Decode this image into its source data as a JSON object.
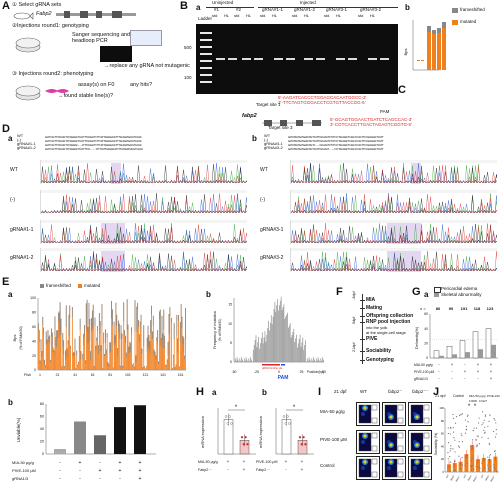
{
  "panel_letters": {
    "A": "A",
    "B": "B",
    "C": "C",
    "D": "D",
    "E": "E",
    "F": "F",
    "G": "G",
    "H": "H",
    "I": "I",
    "J": "J"
  },
  "sub_letters": {
    "a": "a",
    "b": "b"
  },
  "panelA": {
    "step1": "① Select gRNA sets",
    "gene": "Fabp2",
    "step2": "②Injections round1: genotyping",
    "seq_note": "Sanger sequencing and",
    "seq_note2": "headloop PCR",
    "replace_note": "→replace any gRNA not mutagenic",
    "step3": "③ Injections round2: phenotyping",
    "assay": "assay(s) on F0",
    "hits": "any hits?",
    "found": "→found stable line(s)?"
  },
  "panelBa": {
    "header_uninjected": "Uninjected",
    "header_injected": "Injected",
    "groups": [
      "#1",
      "#2",
      "gRNA#1-1",
      "gRNA#1-2",
      "gRNA#3-1",
      "gRNA#3-2"
    ],
    "lanes": [
      "std",
      "HL"
    ],
    "ladder": "Ladder",
    "marker_500": "500",
    "marker_100": "100"
  },
  "panelBb": {
    "ylabel": "Bps\n(% of PAM±50)",
    "legend_frameshift": "frameshifted",
    "legend_mutated": "mutated",
    "legend_colors": {
      "frameshift": "#888888",
      "mutated": "#f07f1e"
    }
  },
  "panelC": {
    "gene": "fabp2",
    "target1": "Target site 1",
    "target3": "Target site 3",
    "seq1": "5'-AAGATCACCCTGGAGCACAATGGCC-3'",
    "seq1b": "3'-TTCTAGTGGGACCTCGTGTTACCGG-5'",
    "seq3": "5'-GCAGTGGAACTGATCTCAGCCAC-3'",
    "seq3b": "3'-CGTCACCTTGACTAGAGTCGGTG-5'",
    "pam": "PAM"
  },
  "panelD": {
    "a_labels": [
      "WT",
      "(-)",
      "gRNA#1-1",
      "gRNA#1-2"
    ],
    "b_labels": [
      "WT",
      "(-)",
      "gRNA#3-1",
      "gRNA#3-2"
    ],
    "a_trace_labels": [
      "WT",
      "(-)",
      "gRNA#1-1",
      "gRNA#1-2"
    ],
    "b_trace_labels": [
      "WT",
      "(-)",
      "gRNA#3-1",
      "gRNA#3-2"
    ]
  },
  "panelEa": {
    "legend_frameshift": "frameshifted",
    "legend_mutated": "mutated",
    "ylabel": "Bps\n(% of PAM±50)",
    "xlabel": "Fish",
    "xticks": [
      "1",
      "21",
      "41",
      "61",
      "81",
      "101",
      "121",
      "141",
      "161"
    ],
    "yticks": [
      "0",
      "20",
      "40",
      "60",
      "80",
      "100"
    ]
  },
  "panelEb": {
    "ylabel": "Frequency of mutation\n(% of PAM±50)",
    "xlabel": "Position(bp)",
    "pam": "PAM",
    "binding": "gRNA binding site",
    "xticks": [
      "-50",
      "-25",
      "0",
      "25",
      "50"
    ],
    "yticks": [
      "0",
      "5",
      "10",
      "15"
    ]
  },
  "panelEbb": {
    "ylabel": "Unviable(%)",
    "yticks": [
      "0",
      "20",
      "40",
      "60",
      "80"
    ],
    "rows": [
      "MIA-50 μg/g",
      "PIVE-100 μM",
      "gRNA1/3"
    ],
    "signs": [
      [
        "-",
        "+",
        "-",
        "+",
        "+"
      ],
      [
        "-",
        "-",
        "+",
        "+",
        "+"
      ],
      [
        "-",
        "-",
        "-",
        "-",
        "+"
      ]
    ],
    "values": [
      8,
      52,
      30,
      75,
      78
    ],
    "colors": [
      "#aaaaaa",
      "#888888",
      "#666666",
      "#111111",
      "#111111"
    ]
  },
  "panelF": {
    "steps": [
      "MIA",
      "Mating",
      "Offspring collection",
      "RNP pool injection",
      "into the yolk",
      "at the single-cell stage",
      "PIVE",
      "Sociability",
      "Genotyping"
    ],
    "days": [
      "-3dpf",
      "0dpf",
      "21dpf"
    ]
  },
  "panelG": {
    "legend_pericardial": "Pericardial edema",
    "legend_skeletal": "Skeletal abnormality",
    "n_label": "n =",
    "n_values": [
      "80",
      "90",
      "191",
      "118",
      "123"
    ],
    "ylabel": "Deformity(%)",
    "yticks": [
      "0",
      "20",
      "40",
      "60"
    ],
    "rows": [
      "MIA-50 μg/g",
      "PIVE-100 μM",
      "gRNA1/3"
    ],
    "signs": [
      [
        "-",
        "+",
        "-",
        "+",
        "+"
      ],
      [
        "-",
        "-",
        "+",
        "+",
        "+"
      ],
      [
        "-",
        "-",
        "-",
        "-",
        "+"
      ]
    ]
  },
  "panelHa": {
    "ylabel": "mRNA expression",
    "rows": [
      "MIA-50 μg/g",
      "Fabp2⁻⁻"
    ],
    "signs": [
      [
        "+",
        "+"
      ],
      [
        "-",
        "+"
      ]
    ],
    "star": "*"
  },
  "panelHb": {
    "ylabel": "mRNA expression",
    "rows": [
      "PIVE-100 μM",
      "Fabp2⁻⁻"
    ],
    "signs": [
      [
        "+",
        "+"
      ],
      [
        "-",
        "+"
      ]
    ],
    "star": "*"
  },
  "panelI": {
    "title": "21 dpf",
    "col1": "WT",
    "col2": "fabp2⁻",
    "col3": "fabp2⁻⁻",
    "rows": [
      "MIA-50 μg/g",
      "PIVE-100 μM",
      "Control"
    ]
  },
  "panelJ": {
    "title": "21 dpf",
    "groups": [
      "Control",
      "MIA-50 μg/g",
      "PIVE-100 μM"
    ],
    "p1": "0.0006",
    "p2": "0.0127",
    "stars": [
      "*",
      "*"
    ],
    "ylabel": "Sociability (%)",
    "yticks": [
      "0",
      "20",
      "40",
      "60",
      "80",
      "100"
    ],
    "xlabels": [
      "WT",
      "fabp2⁻",
      "fabp2⁻⁻",
      "WT",
      "fabp2⁻",
      "fabp2⁻⁻",
      "WT",
      "fabp2⁻",
      "fabp2⁻⁻"
    ],
    "bar_values": [
      12,
      14,
      16,
      28,
      42,
      20,
      22,
      20,
      24
    ],
    "bar_color": "#f07f1e"
  }
}
